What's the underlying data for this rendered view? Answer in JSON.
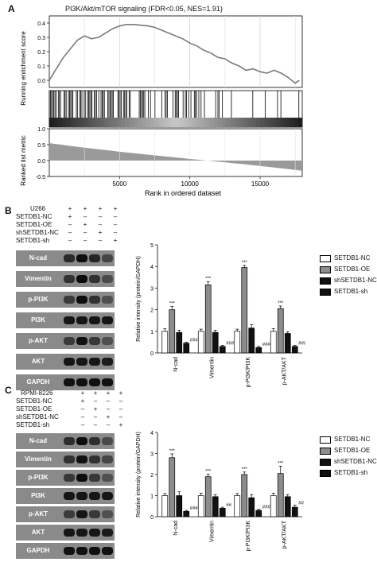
{
  "panel_a": {
    "label": "A",
    "title": "PI3K/Akt/mTOR signaling (FDR<0.05, NES=1.91)",
    "ylabel_top": "Running enrichment score",
    "ylabel_bottom": "Ranked list metric",
    "xlabel": "Rank in ordered dataset"
  },
  "panel_b": {
    "label": "B",
    "cell_line": "U266",
    "groups": [
      {
        "name": "SETDB1-NC",
        "signs": [
          "+",
          "-",
          "-",
          "-"
        ]
      },
      {
        "name": "SETDB1-OE",
        "signs": [
          "-",
          "+",
          "-",
          "-"
        ]
      },
      {
        "name": "shSETDB1-NC",
        "signs": [
          "-",
          "-",
          "+",
          "-"
        ]
      },
      {
        "name": "SETDB1-sh",
        "signs": [
          "-",
          "-",
          "-",
          "+"
        ]
      }
    ],
    "header_signs": [
      "+",
      "+",
      "+",
      "+"
    ],
    "blots": [
      "N-cad",
      "Vimentin",
      "p-PI3K",
      "PI3K",
      "p-AKT",
      "AKT",
      "GAPDH"
    ],
    "band_intensity": [
      [
        0.7,
        1.0,
        0.75,
        0.4
      ],
      [
        0.6,
        1.0,
        0.6,
        0.35
      ],
      [
        0.5,
        1.0,
        0.6,
        0.3
      ],
      [
        0.9,
        0.9,
        0.9,
        0.9
      ],
      [
        0.5,
        0.95,
        0.55,
        0.3
      ],
      [
        0.9,
        0.9,
        0.9,
        0.85
      ],
      [
        0.95,
        0.95,
        0.95,
        0.95
      ]
    ]
  },
  "panel_c": {
    "label": "C",
    "cell_line": "RPMI-8226",
    "groups": [
      {
        "name": "SETDB1-NC",
        "signs": [
          "+",
          "-",
          "-",
          "-"
        ]
      },
      {
        "name": "SETDB1-OE",
        "signs": [
          "-",
          "+",
          "-",
          "-"
        ]
      },
      {
        "name": "shSETDB1-NC",
        "signs": [
          "-",
          "-",
          "+",
          "-"
        ]
      },
      {
        "name": "SETDB1-sh",
        "signs": [
          "-",
          "-",
          "-",
          "+"
        ]
      }
    ],
    "header_signs": [
      "+",
      "+",
      "+",
      "+"
    ],
    "blots": [
      "N-cad",
      "Vimentin",
      "p-PI3K",
      "PI3K",
      "p-AKT",
      "AKT",
      "GAPDH"
    ],
    "band_intensity": [
      [
        0.65,
        1.0,
        0.65,
        0.35
      ],
      [
        0.6,
        0.95,
        0.6,
        0.4
      ],
      [
        0.55,
        1.0,
        0.55,
        0.3
      ],
      [
        0.9,
        0.9,
        0.9,
        0.9
      ],
      [
        0.5,
        0.9,
        0.55,
        0.3
      ],
      [
        0.9,
        0.9,
        0.9,
        0.85
      ],
      [
        0.95,
        0.95,
        0.95,
        0.95
      ]
    ]
  },
  "legend": [
    {
      "label": "SETDB1-NC",
      "color": "#ffffff"
    },
    {
      "label": "SETDB1-OE",
      "color": "#8c8c8c"
    },
    {
      "label": "shSETDB1-NC",
      "color": "#111111"
    },
    {
      "label": "SETDB1-sh",
      "color": "#111111"
    }
  ],
  "chart_data": [
    {
      "type": "line",
      "x": [
        0,
        500,
        1000,
        1500,
        2000,
        2500,
        3000,
        3500,
        4000,
        4500,
        5000,
        5500,
        6000,
        6500,
        7000,
        7500,
        8000,
        8500,
        9000,
        9500,
        10000,
        10500,
        11000,
        11500,
        12000,
        12500,
        13000,
        13500,
        14000,
        14500,
        15000,
        15500,
        16000,
        16500,
        17000,
        17500,
        17800
      ],
      "y": [
        0.0,
        0.08,
        0.16,
        0.22,
        0.28,
        0.31,
        0.29,
        0.3,
        0.33,
        0.36,
        0.38,
        0.39,
        0.39,
        0.385,
        0.38,
        0.37,
        0.35,
        0.33,
        0.31,
        0.29,
        0.26,
        0.24,
        0.21,
        0.19,
        0.16,
        0.15,
        0.12,
        0.1,
        0.07,
        0.08,
        0.06,
        0.05,
        0.07,
        0.05,
        0.02,
        -0.02,
        0.0
      ],
      "ylabel": "Running enrichment score",
      "xlabel": "Rank in ordered dataset",
      "title": "PI3K/Akt/mTOR signaling (FDR<0.05, NES=1.91)",
      "ylim": [
        -0.05,
        0.45
      ],
      "xlim": [
        0,
        18000
      ],
      "yticks": [
        0.0,
        0.1,
        0.2,
        0.3,
        0.4
      ],
      "xticks": [
        5000,
        10000,
        15000
      ],
      "ranked_metric_ylim": [
        -0.5,
        1.0
      ],
      "ranked_metric_yticks": [
        1.0,
        0.5,
        0.0,
        -0.5
      ]
    },
    {
      "type": "bar",
      "categories": [
        "N-cad",
        "Vimentin",
        "p-PI3K/PI3K",
        "p-AKT/AKT"
      ],
      "series": [
        {
          "name": "SETDB1-NC",
          "values": [
            1.0,
            1.0,
            1.0,
            1.0
          ],
          "errors": [
            0.12,
            0.1,
            0.1,
            0.12
          ]
        },
        {
          "name": "SETDB1-OE",
          "values": [
            2.0,
            3.15,
            3.95,
            2.05
          ],
          "errors": [
            0.15,
            0.15,
            0.1,
            0.12
          ]
        },
        {
          "name": "shSETDB1-NC",
          "values": [
            0.95,
            0.95,
            1.15,
            0.9
          ],
          "errors": [
            0.1,
            0.1,
            0.15,
            0.08
          ]
        },
        {
          "name": "SETDB1-sh",
          "values": [
            0.45,
            0.3,
            0.25,
            0.3
          ],
          "errors": [
            0.05,
            0.05,
            0.05,
            0.05
          ]
        }
      ],
      "ylabel": "Relative intensity (protein/GAPDH)",
      "ylim": [
        0,
        5
      ],
      "yticks": [
        0,
        1,
        2,
        3,
        4,
        5
      ],
      "annotations_oe": [
        "***",
        "***",
        "***",
        "***"
      ],
      "annotations_sh": [
        "###",
        "###",
        "###",
        "###"
      ]
    },
    {
      "type": "bar",
      "categories": [
        "N-cad",
        "Vimentin",
        "p-PI3K/PI3K",
        "p-AKT/AKT"
      ],
      "series": [
        {
          "name": "SETDB1-NC",
          "values": [
            1.0,
            1.0,
            1.0,
            1.0
          ],
          "errors": [
            0.1,
            0.12,
            0.1,
            0.12
          ]
        },
        {
          "name": "SETDB1-OE",
          "values": [
            2.8,
            1.9,
            2.0,
            2.05
          ],
          "errors": [
            0.18,
            0.12,
            0.12,
            0.35
          ]
        },
        {
          "name": "shSETDB1-NC",
          "values": [
            1.0,
            0.95,
            0.9,
            0.95
          ],
          "errors": [
            0.18,
            0.1,
            0.15,
            0.1
          ]
        },
        {
          "name": "SETDB1-sh",
          "values": [
            0.25,
            0.4,
            0.3,
            0.45
          ],
          "errors": [
            0.05,
            0.05,
            0.05,
            0.1
          ]
        }
      ],
      "ylabel": "Relative intensity (protein/GAPDH)",
      "ylim": [
        0,
        4
      ],
      "yticks": [
        0,
        1,
        2,
        3,
        4
      ],
      "annotations_oe": [
        "***",
        "***",
        "***",
        "***"
      ],
      "annotations_sh": [
        "###",
        "##",
        "###",
        "##"
      ]
    }
  ]
}
